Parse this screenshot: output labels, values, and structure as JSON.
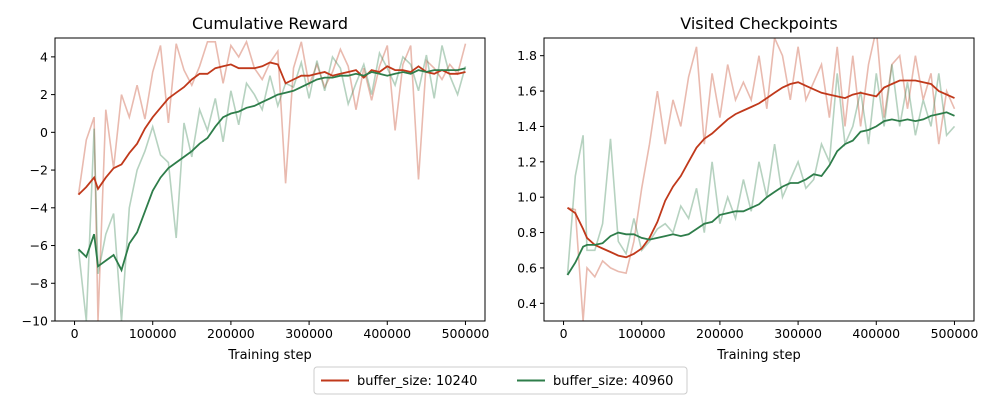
{
  "legend": {
    "entries": [
      {
        "label": "buffer_size: 10240",
        "color": "#c0391b"
      },
      {
        "label": "buffer_size: 40960",
        "color": "#2e7d4a"
      }
    ]
  },
  "chart_data": [
    {
      "type": "line",
      "title": "Cumulative Reward",
      "xlabel": "Training step",
      "ylabel": "",
      "xlim": [
        -25000,
        525000
      ],
      "ylim": [
        -10,
        5
      ],
      "xticks": [
        0,
        100000,
        200000,
        300000,
        400000,
        500000
      ],
      "yticks": [
        -10,
        -8,
        -6,
        -4,
        -2,
        0,
        2,
        4
      ],
      "grid": false,
      "series": [
        {
          "name": "buffer_size: 10240",
          "color": "#c0391b",
          "x": [
            5000,
            15000,
            25000,
            30000,
            40000,
            50000,
            60000,
            70000,
            80000,
            90000,
            100000,
            110000,
            120000,
            130000,
            140000,
            150000,
            160000,
            170000,
            180000,
            190000,
            200000,
            210000,
            220000,
            230000,
            240000,
            250000,
            260000,
            270000,
            280000,
            290000,
            300000,
            310000,
            320000,
            330000,
            340000,
            350000,
            360000,
            370000,
            380000,
            390000,
            400000,
            410000,
            420000,
            430000,
            440000,
            450000,
            460000,
            470000,
            480000,
            490000,
            500000
          ],
          "smoothed": [
            -3.3,
            -2.9,
            -2.4,
            -3.0,
            -2.4,
            -1.9,
            -1.7,
            -1.1,
            -0.6,
            0.2,
            0.8,
            1.3,
            1.8,
            2.1,
            2.4,
            2.8,
            3.1,
            3.1,
            3.4,
            3.5,
            3.6,
            3.4,
            3.4,
            3.4,
            3.5,
            3.7,
            3.6,
            2.6,
            2.8,
            3.0,
            3.0,
            3.1,
            3.2,
            3.0,
            3.1,
            3.2,
            3.3,
            2.9,
            3.3,
            3.2,
            3.5,
            3.3,
            3.3,
            3.2,
            3.5,
            3.2,
            3.1,
            3.3,
            3.1,
            3.1,
            3.2
          ],
          "raw": [
            -3.3,
            -0.4,
            0.8,
            -10.0,
            1.2,
            -1.9,
            2.0,
            0.8,
            2.5,
            0.7,
            3.2,
            4.6,
            0.5,
            4.7,
            3.3,
            2.5,
            3.5,
            4.8,
            4.8,
            2.6,
            4.6,
            4.0,
            4.8,
            3.4,
            2.8,
            3.7,
            4.3,
            -2.7,
            3.4,
            4.8,
            2.5,
            3.6,
            2.4,
            3.2,
            4.4,
            3.5,
            1.2,
            3.4,
            1.7,
            3.5,
            4.6,
            0.1,
            3.6,
            4.6,
            -2.5,
            3.8,
            3.4,
            2.8,
            3.6,
            3.1,
            4.7
          ]
        },
        {
          "name": "buffer_size: 40960",
          "color": "#2e7d4a",
          "x": [
            5000,
            15000,
            25000,
            30000,
            40000,
            50000,
            60000,
            70000,
            80000,
            90000,
            100000,
            110000,
            120000,
            130000,
            140000,
            150000,
            160000,
            170000,
            180000,
            190000,
            200000,
            210000,
            220000,
            230000,
            240000,
            250000,
            260000,
            270000,
            280000,
            290000,
            300000,
            310000,
            320000,
            330000,
            340000,
            350000,
            360000,
            370000,
            380000,
            390000,
            400000,
            410000,
            420000,
            430000,
            440000,
            450000,
            460000,
            470000,
            480000,
            490000,
            500000
          ],
          "smoothed": [
            -6.2,
            -6.6,
            -5.4,
            -7.1,
            -6.8,
            -6.5,
            -7.3,
            -5.9,
            -5.3,
            -4.2,
            -3.1,
            -2.4,
            -1.9,
            -1.6,
            -1.3,
            -1.0,
            -0.6,
            -0.3,
            0.3,
            0.8,
            1.0,
            1.1,
            1.3,
            1.4,
            1.6,
            1.8,
            2.0,
            2.1,
            2.2,
            2.4,
            2.6,
            2.8,
            2.9,
            2.9,
            3.0,
            3.0,
            3.1,
            3.0,
            3.2,
            3.1,
            3.0,
            3.1,
            3.2,
            3.1,
            3.3,
            3.2,
            3.3,
            3.3,
            3.3,
            3.3,
            3.4
          ],
          "raw": [
            -6.2,
            -10.0,
            0.2,
            -7.5,
            -5.4,
            -4.3,
            -10.0,
            -4.0,
            -2.0,
            -1.0,
            0.3,
            -1.2,
            -1.6,
            -5.6,
            0.5,
            -1.3,
            1.2,
            0.1,
            1.8,
            -0.5,
            2.2,
            0.4,
            2.6,
            2.0,
            1.2,
            3.0,
            1.4,
            2.6,
            2.4,
            3.7,
            1.8,
            3.8,
            2.2,
            4.0,
            3.4,
            1.5,
            2.6,
            3.6,
            2.0,
            4.2,
            3.4,
            2.5,
            4.0,
            3.6,
            2.2,
            4.1,
            1.8,
            4.6,
            3.0,
            2.0,
            3.5
          ]
        }
      ]
    },
    {
      "type": "line",
      "title": "Visited Checkpoints",
      "xlabel": "Training step",
      "ylabel": "",
      "xlim": [
        -25000,
        525000
      ],
      "ylim": [
        0.3,
        1.9
      ],
      "xticks": [
        0,
        100000,
        200000,
        300000,
        400000,
        500000
      ],
      "yticks": [
        0.4,
        0.6,
        0.8,
        1.0,
        1.2,
        1.4,
        1.6,
        1.8
      ],
      "grid": false,
      "series": [
        {
          "name": "buffer_size: 10240",
          "color": "#c0391b",
          "x": [
            5000,
            15000,
            25000,
            30000,
            40000,
            50000,
            60000,
            70000,
            80000,
            90000,
            100000,
            110000,
            120000,
            130000,
            140000,
            150000,
            160000,
            170000,
            180000,
            190000,
            200000,
            210000,
            220000,
            230000,
            240000,
            250000,
            260000,
            270000,
            280000,
            290000,
            300000,
            310000,
            320000,
            330000,
            340000,
            350000,
            360000,
            370000,
            380000,
            390000,
            400000,
            410000,
            420000,
            430000,
            440000,
            450000,
            460000,
            470000,
            480000,
            490000,
            500000
          ],
          "smoothed": [
            0.94,
            0.91,
            0.82,
            0.77,
            0.73,
            0.71,
            0.69,
            0.67,
            0.66,
            0.68,
            0.71,
            0.77,
            0.86,
            0.98,
            1.06,
            1.12,
            1.2,
            1.28,
            1.33,
            1.36,
            1.4,
            1.44,
            1.47,
            1.49,
            1.51,
            1.53,
            1.56,
            1.59,
            1.62,
            1.64,
            1.65,
            1.63,
            1.61,
            1.59,
            1.58,
            1.57,
            1.56,
            1.58,
            1.59,
            1.58,
            1.57,
            1.62,
            1.64,
            1.66,
            1.66,
            1.66,
            1.65,
            1.64,
            1.6,
            1.58,
            1.56
          ],
          "raw": [
            0.94,
            0.93,
            0.3,
            0.6,
            0.55,
            0.64,
            0.6,
            0.58,
            0.57,
            0.75,
            1.05,
            1.3,
            1.6,
            1.3,
            1.55,
            1.4,
            1.68,
            1.85,
            1.3,
            1.7,
            1.45,
            1.75,
            1.55,
            1.65,
            1.55,
            1.8,
            1.5,
            1.9,
            1.8,
            1.55,
            1.85,
            1.55,
            1.65,
            1.75,
            1.45,
            1.85,
            1.4,
            1.8,
            1.4,
            1.75,
            1.95,
            1.45,
            1.75,
            1.8,
            1.5,
            1.8,
            1.55,
            1.7,
            1.3,
            1.6,
            1.5
          ]
        },
        {
          "name": "buffer_size: 40960",
          "color": "#2e7d4a",
          "x": [
            5000,
            15000,
            25000,
            30000,
            40000,
            50000,
            60000,
            70000,
            80000,
            90000,
            100000,
            110000,
            120000,
            130000,
            140000,
            150000,
            160000,
            170000,
            180000,
            190000,
            200000,
            210000,
            220000,
            230000,
            240000,
            250000,
            260000,
            270000,
            280000,
            290000,
            300000,
            310000,
            320000,
            330000,
            340000,
            350000,
            360000,
            370000,
            380000,
            390000,
            400000,
            410000,
            420000,
            430000,
            440000,
            450000,
            460000,
            470000,
            480000,
            490000,
            500000
          ],
          "smoothed": [
            0.56,
            0.63,
            0.72,
            0.73,
            0.73,
            0.74,
            0.78,
            0.8,
            0.79,
            0.79,
            0.77,
            0.76,
            0.77,
            0.78,
            0.79,
            0.78,
            0.79,
            0.82,
            0.85,
            0.86,
            0.9,
            0.91,
            0.92,
            0.92,
            0.94,
            0.96,
            1.0,
            1.03,
            1.06,
            1.08,
            1.08,
            1.1,
            1.13,
            1.12,
            1.18,
            1.26,
            1.3,
            1.32,
            1.37,
            1.38,
            1.4,
            1.43,
            1.44,
            1.43,
            1.44,
            1.43,
            1.44,
            1.46,
            1.47,
            1.48,
            1.46
          ],
          "raw": [
            0.56,
            1.12,
            1.35,
            0.7,
            0.7,
            0.85,
            1.33,
            0.75,
            0.68,
            0.88,
            0.7,
            0.75,
            0.82,
            0.85,
            0.8,
            0.95,
            0.88,
            1.05,
            0.8,
            1.2,
            0.85,
            1.0,
            0.88,
            1.1,
            0.92,
            1.2,
            1.0,
            1.3,
            1.0,
            1.1,
            1.2,
            1.05,
            1.1,
            1.3,
            1.2,
            1.7,
            1.3,
            1.4,
            1.6,
            1.3,
            1.7,
            1.4,
            1.75,
            1.4,
            1.65,
            1.35,
            1.55,
            1.4,
            1.7,
            1.35,
            1.4
          ]
        }
      ]
    }
  ]
}
